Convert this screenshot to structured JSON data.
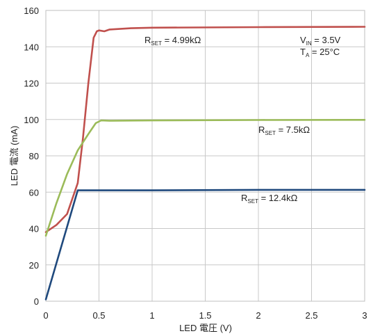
{
  "chart_data": {
    "type": "line",
    "xlabel": "LED 電圧 (V)",
    "ylabel": "LED 電流 (mA)",
    "xlim": [
      0,
      3
    ],
    "ylim": [
      0,
      160
    ],
    "xticks": [
      0,
      0.5,
      1,
      1.5,
      2,
      2.5,
      3
    ],
    "xtick_labels": [
      "0",
      "0.5",
      "1",
      "1.5",
      "2",
      "2.5",
      "3"
    ],
    "yticks": [
      0,
      20,
      40,
      60,
      80,
      100,
      120,
      140,
      160
    ],
    "ytick_labels": [
      "0",
      "20",
      "40",
      "60",
      "80",
      "100",
      "120",
      "140",
      "160"
    ],
    "grid": true,
    "series": [
      {
        "label_main": "R",
        "label_sub": "SET",
        "label_rest": " = 4.99kΩ",
        "color": "#c0504d",
        "x": [
          0,
          0.1,
          0.2,
          0.3,
          0.35,
          0.4,
          0.45,
          0.48,
          0.5,
          0.55,
          0.6,
          0.8,
          1.0,
          2.0,
          3.0
        ],
        "y": [
          38,
          42,
          48,
          65,
          90,
          120,
          145,
          148.5,
          149,
          148.5,
          149.5,
          150.2,
          150.5,
          150.8,
          151
        ]
      },
      {
        "label_main": "R",
        "label_sub": "SET",
        "label_rest": " = 7.5kΩ",
        "color": "#9bbb59",
        "x": [
          0,
          0.1,
          0.2,
          0.3,
          0.4,
          0.47,
          0.52,
          0.6,
          1.0,
          2.0,
          3.0
        ],
        "y": [
          36,
          54,
          70,
          83,
          92,
          98,
          99.5,
          99.3,
          99.5,
          99.7,
          99.8
        ]
      },
      {
        "label_main": "R",
        "label_sub": "SET",
        "label_rest": " = 12.4kΩ",
        "color": "#1f497d",
        "x": [
          0,
          0.1,
          0.2,
          0.3,
          0.4,
          0.5,
          1.0,
          2.0,
          3.0
        ],
        "y": [
          1,
          21,
          41,
          61,
          61,
          61,
          61,
          61.3,
          61.3
        ]
      }
    ],
    "annotations": [
      {
        "main": "V",
        "sub": "IN",
        "rest": " = 3.5V"
      },
      {
        "main": "T",
        "sub": "A",
        "rest": " = 25°C"
      }
    ]
  }
}
